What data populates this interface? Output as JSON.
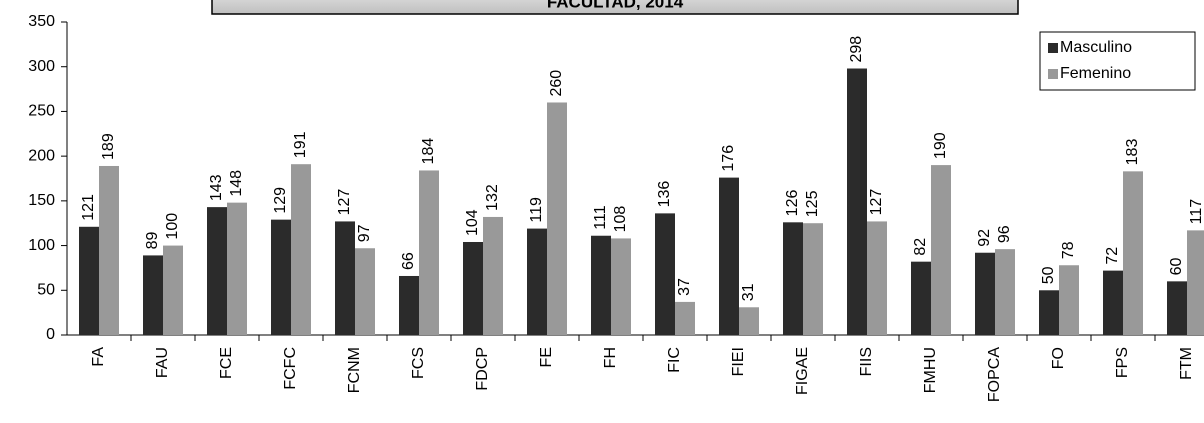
{
  "chart_data": {
    "type": "bar",
    "title": "FACULTAD, 2014",
    "categories": [
      "FA",
      "FAU",
      "FCE",
      "FCFC",
      "FCNM",
      "FCS",
      "FDCP",
      "FE",
      "FH",
      "FIC",
      "FIEI",
      "FIGAE",
      "FIIS",
      "FMHU",
      "FOPCA",
      "FO",
      "FPS",
      "FTM"
    ],
    "series": [
      {
        "name": "Masculino",
        "color": "#2b2b2b",
        "values": [
          121,
          89,
          143,
          129,
          127,
          66,
          104,
          119,
          111,
          136,
          176,
          126,
          298,
          82,
          92,
          50,
          72,
          60
        ]
      },
      {
        "name": "Femenino",
        "color": "#999999",
        "values": [
          189,
          100,
          148,
          191,
          97,
          184,
          132,
          260,
          108,
          37,
          31,
          125,
          127,
          190,
          96,
          78,
          183,
          117
        ]
      }
    ],
    "ylim": [
      0,
      350
    ],
    "yticks": [
      0,
      50,
      100,
      150,
      200,
      250,
      300,
      350
    ],
    "grid": false,
    "legend": "upper right"
  }
}
